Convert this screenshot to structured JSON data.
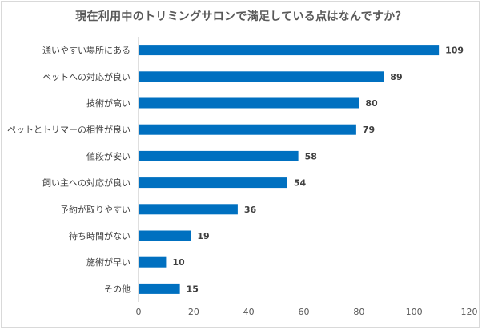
{
  "chart_data": {
    "type": "bar",
    "orientation": "horizontal",
    "title": "現在利用中のトリミングサロンで満足している点はなんですか？",
    "categories": [
      "通いやすい場所にある",
      "ペットへの対応が良い",
      "技術が高い",
      "ペットとトリマーの相性が良い",
      "値段が安い",
      "飼い主への対応が良い",
      "予約が取りやすい",
      "待ち時間がない",
      "施術が早い",
      "その他"
    ],
    "values": [
      109,
      89,
      80,
      79,
      58,
      54,
      36,
      19,
      10,
      15
    ],
    "xlim": [
      0,
      120
    ],
    "xticks": [
      0,
      20,
      40,
      60,
      80,
      100,
      120
    ],
    "xlabel": "",
    "ylabel": "",
    "grid": false,
    "data_labels": true,
    "bar_color": "#0070c0"
  }
}
